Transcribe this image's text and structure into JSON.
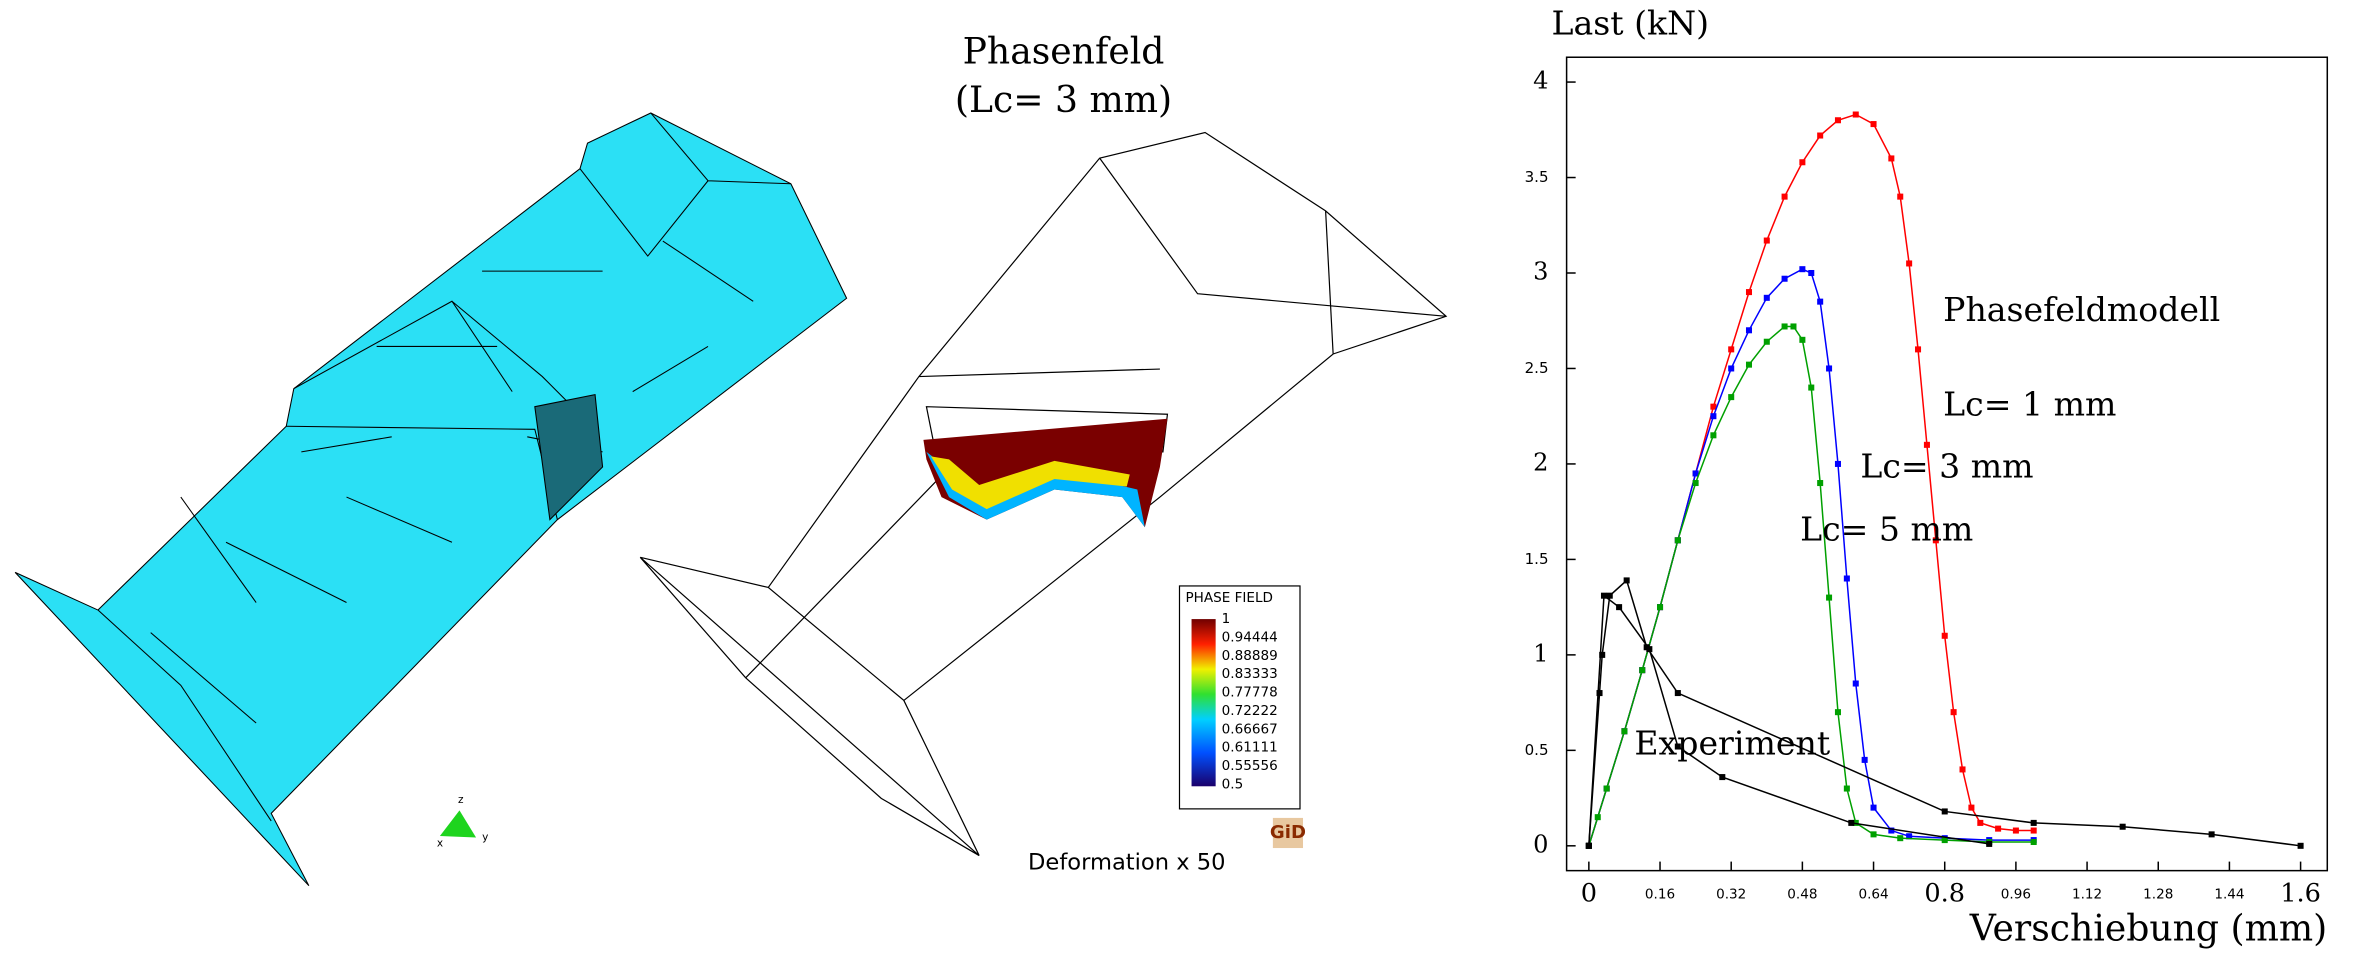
{
  "chart_data": {
    "type": "line",
    "x_label": "Verschiebung (mm)",
    "y_label": "Last (kN)",
    "annotations": [
      "Phasefeldmodell"
    ],
    "xlim": [
      -0.05,
      1.66
    ],
    "ylim": [
      -0.13,
      4.13
    ],
    "xticks": [
      0,
      0.16,
      0.32,
      0.48,
      0.64,
      0.8,
      0.96,
      1.12,
      1.28,
      1.44,
      1.6
    ],
    "yticks": [
      0,
      0.5,
      1,
      1.5,
      2,
      2.5,
      3,
      3.5,
      4
    ],
    "series": [
      {
        "name": "Lc= 1 mm",
        "color": "#ff0000",
        "x": [
          0,
          0.04,
          0.08,
          0.12,
          0.16,
          0.2,
          0.24,
          0.28,
          0.32,
          0.36,
          0.4,
          0.44,
          0.48,
          0.52,
          0.56,
          0.6,
          0.64,
          0.68,
          0.7,
          0.72,
          0.74,
          0.76,
          0.78,
          0.8,
          0.82,
          0.84,
          0.86,
          0.88,
          0.92,
          0.96,
          1.0
        ],
        "values": [
          0,
          0.3,
          0.6,
          0.92,
          1.25,
          1.6,
          1.95,
          2.3,
          2.6,
          2.9,
          3.17,
          3.4,
          3.58,
          3.72,
          3.8,
          3.83,
          3.78,
          3.6,
          3.4,
          3.05,
          2.6,
          2.1,
          1.6,
          1.1,
          0.7,
          0.4,
          0.2,
          0.12,
          0.09,
          0.08,
          0.08
        ]
      },
      {
        "name": "Lc= 3 mm",
        "color": "#0000ff",
        "x": [
          0,
          0.04,
          0.08,
          0.12,
          0.16,
          0.2,
          0.24,
          0.28,
          0.32,
          0.36,
          0.4,
          0.44,
          0.48,
          0.5,
          0.52,
          0.54,
          0.56,
          0.58,
          0.6,
          0.62,
          0.64,
          0.68,
          0.72,
          0.8,
          0.9,
          1.0
        ],
        "values": [
          0,
          0.3,
          0.6,
          0.92,
          1.25,
          1.6,
          1.95,
          2.25,
          2.5,
          2.7,
          2.87,
          2.97,
          3.02,
          3.0,
          2.85,
          2.5,
          2.0,
          1.4,
          0.85,
          0.45,
          0.2,
          0.08,
          0.05,
          0.04,
          0.03,
          0.03
        ]
      },
      {
        "name": "Lc= 5 mm",
        "color": "#00a000",
        "x": [
          0,
          0.02,
          0.04,
          0.08,
          0.12,
          0.16,
          0.2,
          0.24,
          0.28,
          0.32,
          0.36,
          0.4,
          0.44,
          0.46,
          0.48,
          0.5,
          0.52,
          0.54,
          0.56,
          0.58,
          0.6,
          0.64,
          0.7,
          0.8,
          0.9,
          1.0
        ],
        "values": [
          0,
          0.15,
          0.3,
          0.6,
          0.92,
          1.25,
          1.6,
          1.9,
          2.15,
          2.35,
          2.52,
          2.64,
          2.72,
          2.72,
          2.65,
          2.4,
          1.9,
          1.3,
          0.7,
          0.3,
          0.12,
          0.06,
          0.04,
          0.03,
          0.02,
          0.02
        ]
      },
      {
        "name": "Experiment",
        "color": "#000000",
        "x": [
          0,
          0.024,
          0.03,
          0.047,
          0.085,
          0.13,
          0.2,
          0.8,
          1.0,
          1.2,
          1.4,
          1.6
        ],
        "values": [
          0,
          0.8,
          1.0,
          1.31,
          1.39,
          1.04,
          0.8,
          0.18,
          0.12,
          0.1,
          0.06,
          0
        ]
      },
      {
        "color": "#000000",
        "x": [
          0,
          0.034,
          0.068,
          0.136,
          0.2,
          0.3,
          0.59,
          0.9
        ],
        "values": [
          0,
          1.31,
          1.25,
          1.03,
          0.52,
          0.36,
          0.12,
          0.01
        ]
      }
    ]
  },
  "figure": {
    "phase_title": [
      "Phasenfeld",
      "(Lc= 3 mm)"
    ],
    "colorbar": {
      "title": "PHASE FIELD",
      "labels": [
        "1",
        "0.94444",
        "0.88889",
        "0.83333",
        "0.77778",
        "0.72222",
        "0.66667",
        "0.61111",
        "0.55556",
        "0.5"
      ]
    },
    "deformation_label": "Deformation x 50",
    "logo": "GiD",
    "axes_labels": [
      "z",
      "x",
      "y"
    ]
  }
}
